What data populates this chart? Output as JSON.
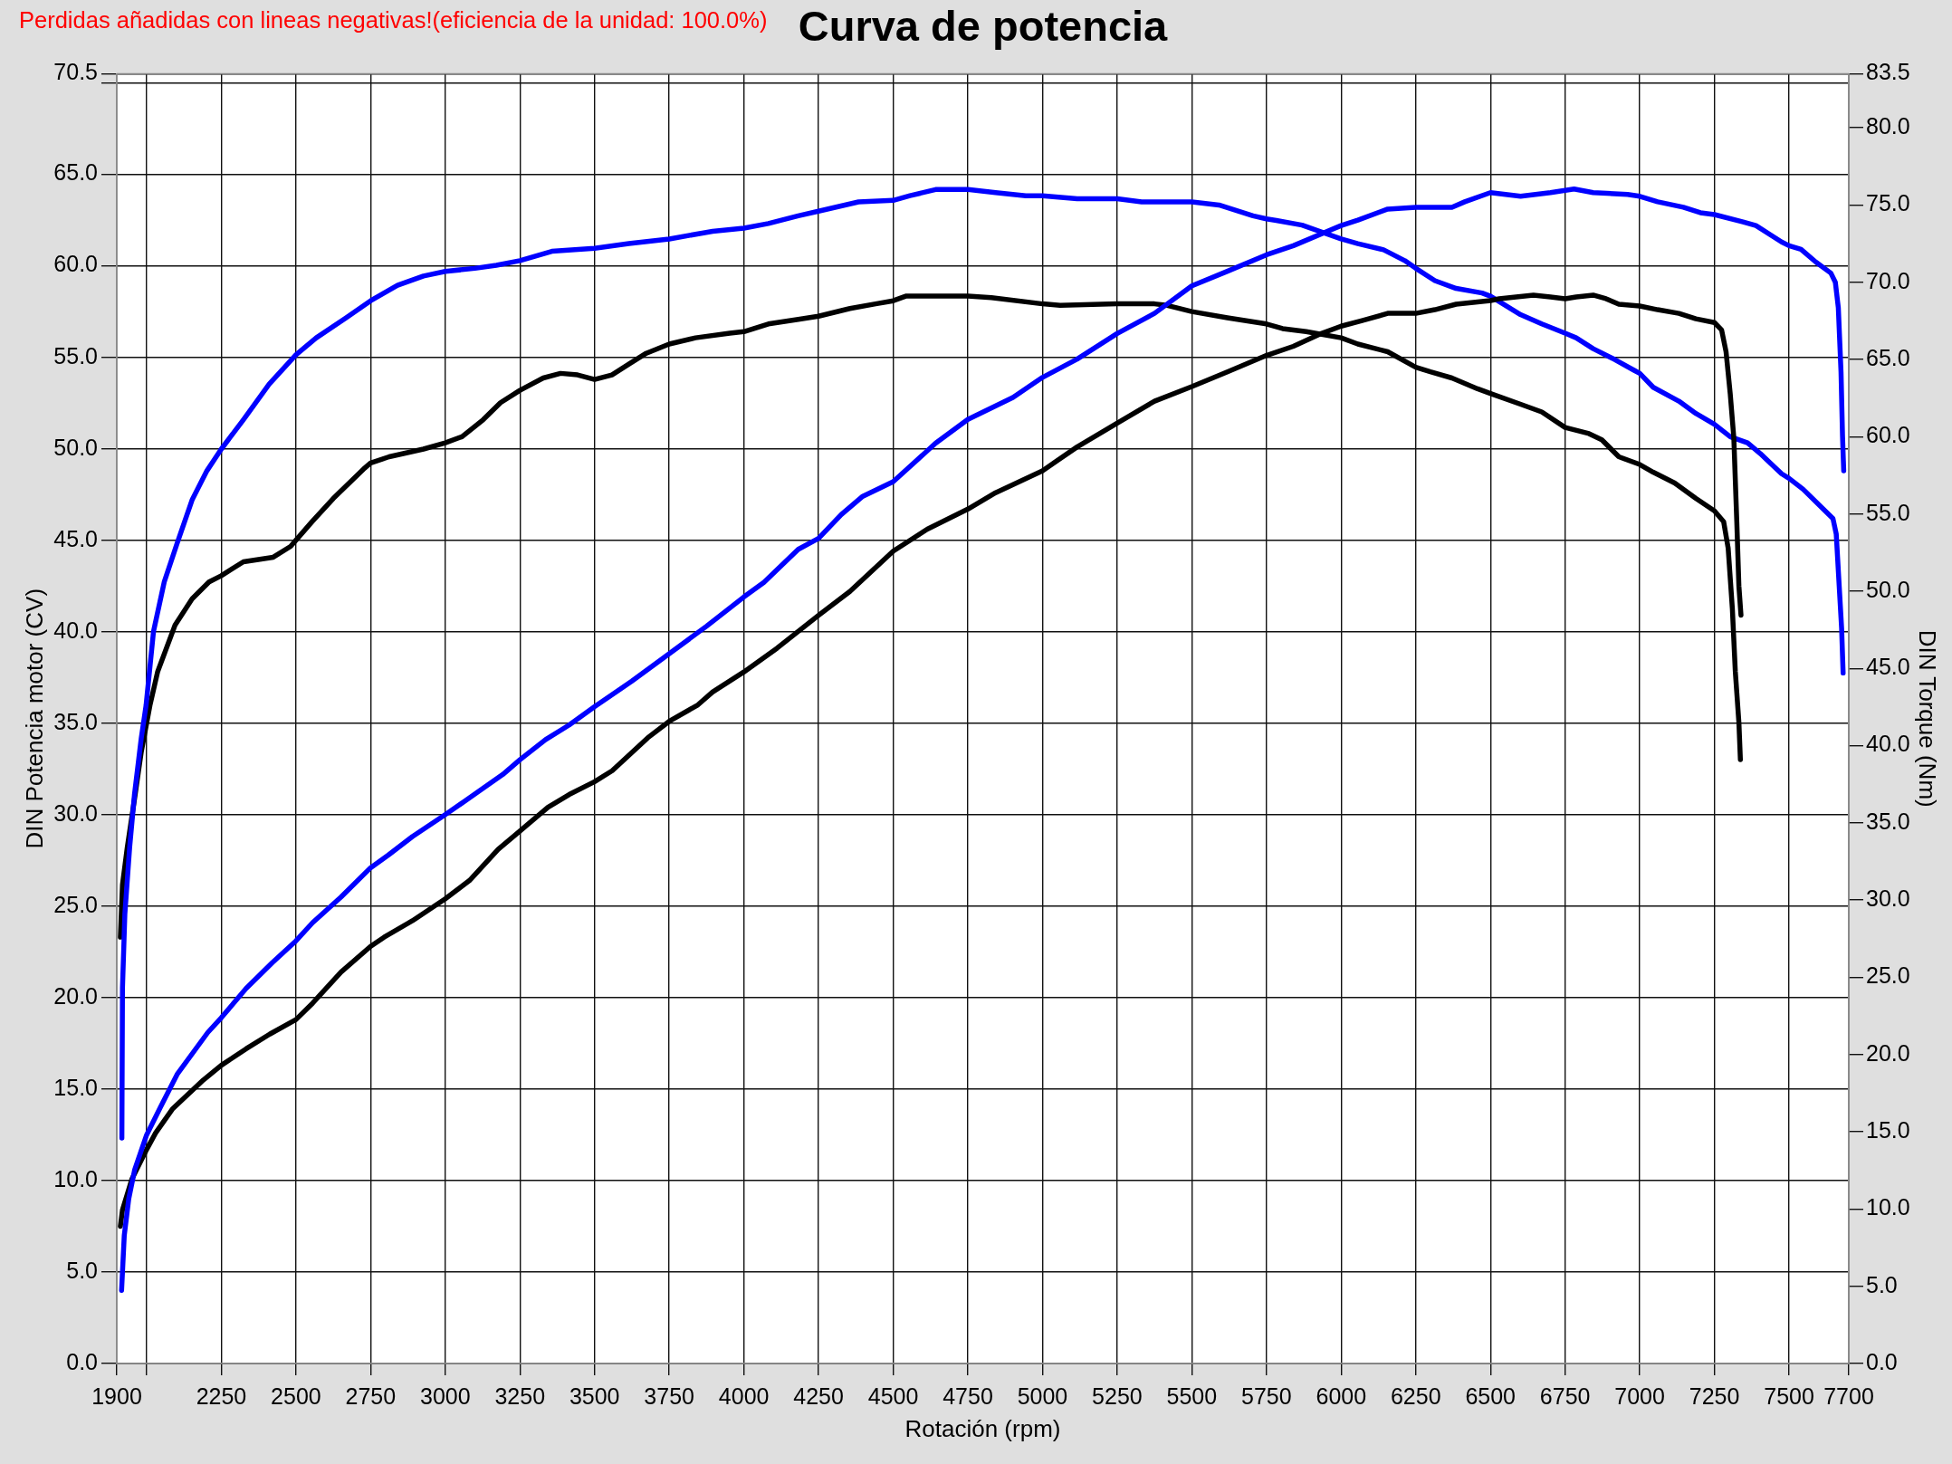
{
  "chart_data": {
    "type": "line",
    "title": "Curva de potencia",
    "xlabel": "Rotación (rpm)",
    "ylabel": "DIN Potencia motor (CV)",
    "y2label": "DIN Torque (Nm)",
    "annotations": [
      "Perdidas añadidas con lineas negativas!(eficiencia de la unidad: 100.0%)"
    ],
    "xlim": [
      1900,
      7700
    ],
    "xticks": [
      1900,
      {
        "value": 2000,
        "label": null
      },
      2250,
      2500,
      2750,
      3000,
      3250,
      3500,
      3750,
      4000,
      4250,
      4500,
      4750,
      5000,
      5250,
      5500,
      5750,
      6000,
      6250,
      6500,
      6750,
      7000,
      7250,
      7500,
      7700
    ],
    "ylim": [
      0,
      70.5
    ],
    "yticks": [
      {
        "value": 0,
        "label": "0.0"
      },
      {
        "value": 5,
        "label": "5.0"
      },
      {
        "value": 10,
        "label": "10.0"
      },
      {
        "value": 15,
        "label": "15.0"
      },
      {
        "value": 20,
        "label": "20.0"
      },
      {
        "value": 25,
        "label": "25.0"
      },
      {
        "value": 30,
        "label": "30.0"
      },
      {
        "value": 35,
        "label": "35.0"
      },
      {
        "value": 40,
        "label": "40.0"
      },
      {
        "value": 45,
        "label": "45.0"
      },
      {
        "value": 50,
        "label": "50.0"
      },
      {
        "value": 55,
        "label": "55.0"
      },
      {
        "value": 60,
        "label": "60.0"
      },
      {
        "value": 65,
        "label": "65.0"
      },
      {
        "value": 70,
        "label": null
      },
      70.5
    ],
    "y2lim": [
      0,
      83.5
    ],
    "y2ticks": [
      {
        "value": 0,
        "label": "0.0"
      },
      {
        "value": 5,
        "label": "5.0"
      },
      {
        "value": 10,
        "label": "10.0"
      },
      {
        "value": 15,
        "label": "15.0"
      },
      {
        "value": 20,
        "label": "20.0"
      },
      {
        "value": 25,
        "label": "25.0"
      },
      {
        "value": 30,
        "label": "30.0"
      },
      {
        "value": 35,
        "label": "35.0"
      },
      {
        "value": 40,
        "label": "40.0"
      },
      {
        "value": 45,
        "label": "45.0"
      },
      {
        "value": 50,
        "label": "50.0"
      },
      {
        "value": 55,
        "label": "55.0"
      },
      {
        "value": 60,
        "label": "60.0"
      },
      {
        "value": 65,
        "label": "65.0"
      },
      {
        "value": 70,
        "label": "70.0"
      },
      {
        "value": 75,
        "label": "75.0"
      },
      {
        "value": 80,
        "label": "80.0"
      },
      83.5
    ],
    "grid": true,
    "legend": false,
    "marker": "none",
    "line_style": "solid",
    "series": [
      {
        "color": "#0000ff",
        "x": [
          1916,
          1925,
          1940,
          1960,
          2000,
          2046,
          2102,
          2205,
          2250,
          2333,
          2420,
          2500,
          2556,
          2651,
          2750,
          2810,
          2890,
          3000,
          3097,
          3193,
          3250,
          3336,
          3415,
          3500,
          3625,
          3750,
          3875,
          4000,
          4067,
          4182,
          4250,
          4326,
          4398,
          4500,
          4642,
          4750,
          4901,
          5000,
          5116,
          5250,
          5375,
          5500,
          5619,
          5750,
          5840,
          6000,
          6056,
          6156,
          6250,
          6371,
          6414,
          6500,
          6601,
          6701,
          6780,
          6844,
          6959,
          7000,
          7060,
          7146,
          7203,
          7250,
          7346,
          7389,
          7475,
          7500,
          7540,
          7590,
          7640,
          7655,
          7665,
          7674,
          7679,
          7683
        ],
        "values": [
          4.0,
          7.0,
          9.0,
          10.6,
          12.5,
          14.0,
          15.8,
          18.1,
          18.9,
          20.5,
          21.9,
          23.1,
          24.1,
          25.5,
          27.1,
          27.8,
          28.8,
          30.0,
          31.1,
          32.2,
          33.0,
          34.1,
          34.9,
          35.9,
          37.3,
          38.8,
          40.3,
          41.9,
          42.7,
          44.5,
          45.1,
          46.4,
          47.4,
          48.2,
          50.3,
          51.6,
          52.8,
          53.9,
          54.9,
          56.3,
          57.4,
          58.9,
          59.7,
          60.6,
          61.1,
          62.2,
          62.5,
          63.1,
          63.2,
          63.2,
          63.5,
          64.0,
          63.8,
          64.0,
          64.2,
          64.0,
          63.9,
          63.8,
          63.5,
          63.2,
          62.9,
          62.8,
          62.4,
          62.2,
          61.3,
          61.1,
          60.9,
          60.2,
          59.6,
          59.1,
          57.7,
          54.2,
          50.7,
          48.8
        ]
      },
      {
        "color": "#000000",
        "x": [
          1912,
          1919,
          1951,
          2000,
          2030,
          2086,
          2190,
          2250,
          2333,
          2412,
          2500,
          2556,
          2651,
          2750,
          2795,
          2890,
          3000,
          3081,
          3177,
          3250,
          3344,
          3415,
          3500,
          3559,
          3678,
          3750,
          3846,
          3895,
          4000,
          4111,
          4250,
          4355,
          4500,
          4614,
          4750,
          4843,
          5000,
          5116,
          5250,
          5375,
          5500,
          5619,
          5750,
          5840,
          5934,
          6000,
          6070,
          6156,
          6250,
          6314,
          6385,
          6500,
          6529,
          6586,
          6644,
          6701,
          6750,
          6787,
          6844,
          6887,
          6930,
          7000,
          7060,
          7131,
          7188,
          7250,
          7274,
          7289,
          7303,
          7315,
          7325,
          7332,
          7339
        ],
        "values": [
          7.5,
          8.4,
          10.1,
          11.7,
          12.6,
          13.9,
          15.5,
          16.3,
          17.2,
          18.0,
          18.8,
          19.7,
          21.4,
          22.8,
          23.3,
          24.2,
          25.4,
          26.4,
          28.1,
          29.1,
          30.4,
          31.1,
          31.8,
          32.4,
          34.2,
          35.1,
          36.0,
          36.7,
          37.8,
          39.1,
          40.9,
          42.2,
          44.4,
          45.6,
          46.7,
          47.6,
          48.8,
          50.1,
          51.4,
          52.6,
          53.4,
          54.2,
          55.1,
          55.6,
          56.3,
          56.7,
          57.0,
          57.4,
          57.4,
          57.6,
          57.9,
          58.1,
          58.2,
          58.3,
          58.4,
          58.3,
          58.2,
          58.3,
          58.4,
          58.2,
          57.9,
          57.8,
          57.6,
          57.4,
          57.1,
          56.9,
          56.5,
          55.3,
          53.0,
          50.6,
          46.0,
          42.5,
          40.9
        ]
      },
      {
        "color": "#0000ff",
        "axis": "y2",
        "x": [
          1917,
          1919,
          1927,
          1943,
          1959,
          1982,
          1998,
          2023,
          2059,
          2102,
          2152,
          2202,
          2250,
          2324,
          2410,
          2500,
          2568,
          2668,
          2750,
          2840,
          2927,
          3000,
          3099,
          3171,
          3250,
          3357,
          3500,
          3615,
          3750,
          3895,
          4000,
          4082,
          4182,
          4250,
          4384,
          4500,
          4556,
          4642,
          4750,
          4843,
          4944,
          5000,
          5116,
          5250,
          5332,
          5500,
          5591,
          5705,
          5750,
          5783,
          5869,
          6000,
          6056,
          6142,
          6213,
          6250,
          6314,
          6385,
          6472,
          6500,
          6601,
          6672,
          6750,
          6787,
          6844,
          6916,
          6981,
          7000,
          7045,
          7131,
          7188,
          7250,
          7303,
          7361,
          7404,
          7475,
          7500,
          7547,
          7647,
          7658,
          7668,
          7676,
          7681
        ],
        "values": [
          14.6,
          24.3,
          29.1,
          33.4,
          36.8,
          40.5,
          42.6,
          47.4,
          50.6,
          53.1,
          55.9,
          57.8,
          59.2,
          61.1,
          63.4,
          65.3,
          66.4,
          67.7,
          68.8,
          69.8,
          70.4,
          70.7,
          70.9,
          71.1,
          71.4,
          72.0,
          72.2,
          72.5,
          72.8,
          73.3,
          73.5,
          73.8,
          74.3,
          74.6,
          75.2,
          75.3,
          75.6,
          76.0,
          76.0,
          75.8,
          75.6,
          75.6,
          75.4,
          75.4,
          75.2,
          75.2,
          75.0,
          74.3,
          74.1,
          74.0,
          73.7,
          72.8,
          72.5,
          72.1,
          71.4,
          70.9,
          70.1,
          69.6,
          69.3,
          69.1,
          67.9,
          67.3,
          66.7,
          66.4,
          65.7,
          65.0,
          64.3,
          64.1,
          63.2,
          62.3,
          61.5,
          60.8,
          60.0,
          59.6,
          58.9,
          57.6,
          57.3,
          56.6,
          54.7,
          53.7,
          50.3,
          47.6,
          44.7
        ]
      },
      {
        "color": "#000000",
        "axis": "y2",
        "x": [
          1912,
          1919,
          1935,
          1959,
          1982,
          2011,
          2037,
          2095,
          2152,
          2209,
          2250,
          2324,
          2424,
          2482,
          2500,
          2554,
          2625,
          2726,
          2750,
          2812,
          2927,
          3000,
          3056,
          3127,
          3185,
          3250,
          3328,
          3386,
          3443,
          3500,
          3558,
          3615,
          3673,
          3750,
          3838,
          3953,
          4000,
          4082,
          4182,
          4250,
          4355,
          4441,
          4500,
          4542,
          4750,
          4829,
          5000,
          5059,
          5250,
          5375,
          5418,
          5500,
          5619,
          5750,
          5804,
          5883,
          6000,
          6056,
          6156,
          6250,
          6299,
          6371,
          6457,
          6500,
          6601,
          6672,
          6750,
          6830,
          6873,
          6930,
          7000,
          7045,
          7117,
          7188,
          7250,
          7281,
          7296,
          7310,
          7320,
          7332,
          7337
        ],
        "values": [
          27.6,
          31.0,
          33.4,
          36.5,
          39.6,
          42.6,
          44.8,
          47.8,
          49.5,
          50.6,
          51.0,
          51.9,
          52.2,
          52.9,
          53.3,
          54.5,
          56.0,
          57.9,
          58.3,
          58.7,
          59.2,
          59.6,
          60.0,
          61.1,
          62.2,
          63.0,
          63.8,
          64.1,
          64.0,
          63.7,
          64.0,
          64.7,
          65.4,
          66.0,
          66.4,
          66.7,
          66.8,
          67.3,
          67.6,
          67.8,
          68.3,
          68.6,
          68.8,
          69.1,
          69.1,
          69.0,
          68.6,
          68.5,
          68.6,
          68.6,
          68.5,
          68.1,
          67.7,
          67.3,
          67.0,
          66.8,
          66.4,
          66.0,
          65.5,
          64.5,
          64.2,
          63.8,
          63.1,
          62.8,
          62.1,
          61.6,
          60.6,
          60.2,
          59.8,
          58.7,
          58.2,
          57.7,
          57.0,
          56.0,
          55.2,
          54.5,
          52.8,
          48.9,
          44.8,
          41.5,
          39.1
        ]
      }
    ]
  }
}
